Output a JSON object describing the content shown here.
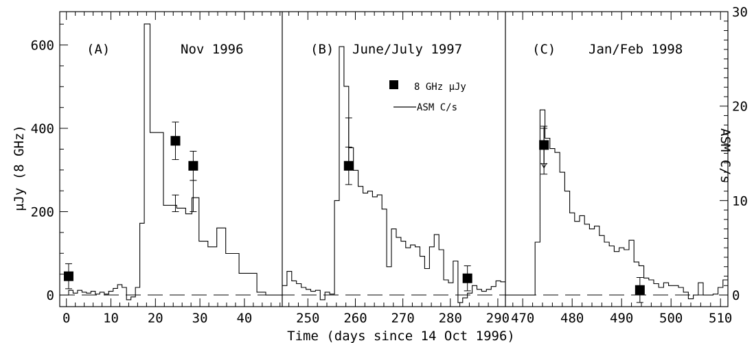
{
  "chart_data": {
    "type": "line",
    "xlabel": "Time (days since 14 Oct 1996)",
    "ylabel_left": "μJy (8 GHz)",
    "ylabel_right": "ASM C/s",
    "y_left_lim": [
      -28,
      680
    ],
    "y_right_lim": [
      -1.23,
      30
    ],
    "y_left_ticks": [
      0,
      200,
      400,
      600
    ],
    "y_right_ticks": [
      0,
      10,
      20,
      30
    ],
    "grid": false,
    "legend_position": "top-right of panel B",
    "legend": [
      {
        "label": "8 GHz μJy",
        "marker": "filled-square"
      },
      {
        "label": "ASM C/s",
        "marker": "line"
      }
    ],
    "panels": [
      {
        "id": "A",
        "label": "(A)",
        "epoch": "Nov 1996",
        "xlim": [
          -1.5,
          48.5
        ],
        "xticks": [
          0,
          10,
          20,
          30,
          40
        ],
        "asm": {
          "x": [
            -1.5,
            0.5,
            1.5,
            2.5,
            3.5,
            4.5,
            5.5,
            6.5,
            7.5,
            8.5,
            9.5,
            10.5,
            11.5,
            12.5,
            13.5,
            14.5,
            15.5,
            16.5,
            17.5,
            18.8,
            21.8,
            24.8,
            26.8,
            28.2,
            29.8,
            31.8,
            33.8,
            35.8,
            38.8,
            42.8,
            44.8
          ],
          "y": [
            0.0,
            0.5,
            0.2,
            0.5,
            0.3,
            0.2,
            0.4,
            0.1,
            0.3,
            0.1,
            0.4,
            0.7,
            1.1,
            0.8,
            -0.5,
            -0.2,
            0.8,
            7.6,
            28.7,
            17.2,
            9.5,
            9.2,
            8.6,
            10.3,
            5.7,
            5.1,
            7.1,
            4.4,
            2.3,
            0.3,
            0.0
          ]
        },
        "radio": [
          {
            "x": 0.5,
            "y": 45,
            "err": 30
          },
          {
            "x": 24.5,
            "y": 370,
            "err": 45
          },
          {
            "x": 28.5,
            "y": 310,
            "err": 35
          }
        ],
        "bars": [
          {
            "x": 24.5,
            "lo": 200,
            "hi": 240
          },
          {
            "x": 28.5,
            "lo": 200,
            "hi": 275
          }
        ]
      },
      {
        "id": "B",
        "label": "(B)",
        "epoch": "June/July 1997",
        "xlim": [
          244.6,
          291.6
        ],
        "xticks": [
          250,
          260,
          270,
          280,
          290
        ],
        "asm": {
          "x": [
            244.6,
            245.6,
            246.6,
            247.6,
            248.6,
            249.6,
            250.6,
            251.6,
            252.6,
            253.6,
            254.6,
            255.6,
            256.6,
            257.6,
            258.6,
            259.6,
            260.6,
            261.6,
            262.6,
            263.6,
            264.6,
            265.6,
            266.6,
            267.6,
            268.6,
            269.6,
            270.6,
            271.6,
            272.6,
            273.6,
            274.6,
            275.6,
            276.6,
            277.6,
            278.6,
            279.6,
            280.6,
            281.6,
            282.6,
            283.6,
            284.6,
            285.6,
            286.6,
            287.6,
            288.6,
            289.6,
            290.6
          ],
          "y": [
            1.0,
            2.5,
            1.5,
            1.2,
            0.8,
            0.6,
            0.4,
            0.5,
            -0.5,
            0.3,
            0.1,
            10.0,
            26.3,
            22.1,
            15.6,
            13.2,
            11.5,
            10.8,
            11.0,
            10.4,
            10.6,
            9.1,
            3.0,
            7.0,
            6.1,
            5.7,
            5.0,
            5.3,
            5.1,
            4.1,
            2.8,
            5.1,
            6.4,
            4.8,
            1.6,
            1.3,
            3.6,
            -0.8,
            -0.3,
            0.2,
            1.0,
            0.6,
            0.4,
            0.6,
            0.9,
            1.5,
            1.4
          ]
        },
        "radio": [
          {
            "x": 258.6,
            "y": 310,
            "err": 45
          },
          {
            "x": 283.6,
            "y": 40,
            "err": 30
          }
        ],
        "bars": [
          {
            "x": 258.6,
            "lo": 300,
            "hi": 425
          }
        ]
      },
      {
        "id": "C",
        "label": "(C)",
        "epoch": "Jan/Feb 1998",
        "xlim": [
          466.5,
          511.5
        ],
        "xticks": [
          470,
          480,
          490,
          500,
          510
        ],
        "asm": {
          "x": [
            466.5,
            467.5,
            468.5,
            469.5,
            470.5,
            471.5,
            472.5,
            473.5,
            474.5,
            475.5,
            476.5,
            477.5,
            478.5,
            479.5,
            480.5,
            481.5,
            482.5,
            483.5,
            484.5,
            485.5,
            486.5,
            487.5,
            488.5,
            489.5,
            490.5,
            491.5,
            492.5,
            493.5,
            494.5,
            495.5,
            496.5,
            497.5,
            498.5,
            499.5,
            500.5,
            501.5,
            502.5,
            503.5,
            504.5,
            505.5,
            506.5,
            507.5,
            508.5,
            509.5,
            510.5
          ],
          "y": [
            0.0,
            0.0,
            0.0,
            0.0,
            0.0,
            0.0,
            5.6,
            19.6,
            16.6,
            15.5,
            15.1,
            13.0,
            11.0,
            8.7,
            7.8,
            8.4,
            7.5,
            7.0,
            7.3,
            6.3,
            5.6,
            5.2,
            4.6,
            5.0,
            4.8,
            5.8,
            3.5,
            3.1,
            1.8,
            1.6,
            1.2,
            0.8,
            1.3,
            1.0,
            1.0,
            0.8,
            0.3,
            -0.4,
            0.0,
            1.3,
            0.0,
            0.0,
            0.1,
            0.8,
            1.6
          ]
        },
        "radio": [
          {
            "x": 474.3,
            "y": 360,
            "err": 45
          },
          {
            "x": 493.7,
            "y": 12,
            "err": 30
          }
        ],
        "bars": [
          {
            "x": 474.3,
            "lo": 290,
            "hi": 400
          }
        ]
      }
    ]
  }
}
